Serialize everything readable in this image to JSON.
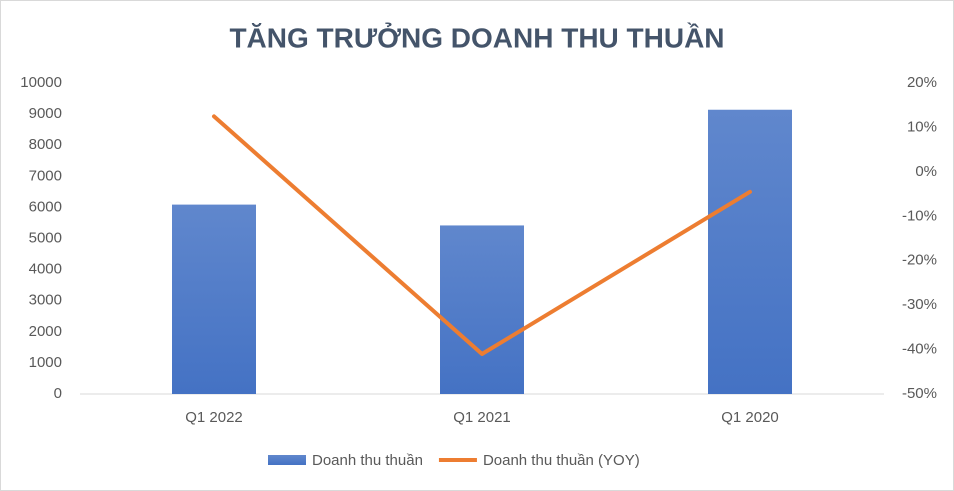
{
  "chart_data": {
    "type": "bar-line",
    "title": "TĂNG TRƯỞNG DOANH THU THUẦN",
    "categories": [
      "Q1 2022",
      "Q1 2021",
      "Q1 2020"
    ],
    "series": [
      {
        "name": "Doanh thu thuần",
        "type": "bar",
        "color": "#4472c4",
        "values": [
          6090,
          5420,
          9140
        ]
      },
      {
        "name": "Doanh thu thuần (YOY)",
        "type": "line",
        "color": "#ed7d31",
        "axis": "y2",
        "values": [
          12.5,
          -41,
          -4.5
        ]
      }
    ],
    "ylim": [
      0,
      10000
    ],
    "yticks": [
      0,
      1000,
      2000,
      3000,
      4000,
      5000,
      6000,
      7000,
      8000,
      9000,
      10000
    ],
    "y2lim": [
      -50,
      20
    ],
    "y2ticks": [
      {
        "value": -50,
        "label": "-50%"
      },
      {
        "value": -40,
        "label": "-40%"
      },
      {
        "value": -30,
        "label": "-30%"
      },
      {
        "value": -20,
        "label": "-20%"
      },
      {
        "value": -10,
        "label": "-10%"
      },
      {
        "value": 0,
        "label": "0%"
      },
      {
        "value": 10,
        "label": "10%"
      },
      {
        "value": 20,
        "label": "20%"
      }
    ],
    "grid": false,
    "legend": "bottom"
  }
}
